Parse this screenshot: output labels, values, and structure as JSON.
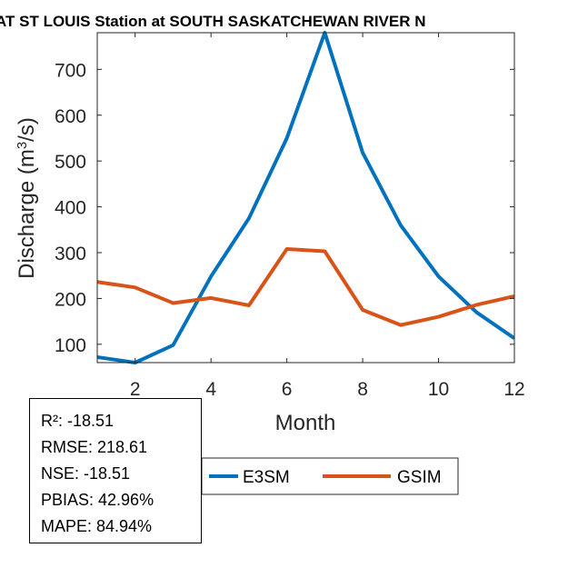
{
  "chart_data": {
    "type": "line",
    "title": "AT ST LOUIS  Station at  SOUTH SASKATCHEWAN RIVER  N",
    "xlabel": "Month",
    "ylabel_main": "Discharge (m",
    "ylabel_sup": "3",
    "ylabel_end": "/s)",
    "xlim": [
      1,
      12
    ],
    "ylim": [
      60,
      780
    ],
    "xticks": [
      2,
      4,
      6,
      8,
      10,
      12
    ],
    "yticks": [
      100,
      200,
      300,
      400,
      500,
      600,
      700
    ],
    "x": [
      1,
      2,
      3,
      4,
      5,
      6,
      7,
      8,
      9,
      10,
      11,
      12
    ],
    "series": [
      {
        "name": "E3SM",
        "color": "#0072BD",
        "values": [
          72,
          60,
          98,
          248,
          375,
          550,
          780,
          518,
          360,
          248,
          170,
          113
        ]
      },
      {
        "name": "GSIM",
        "color": "#D95319",
        "values": [
          236,
          224,
          190,
          201,
          185,
          308,
          303,
          175,
          142,
          160,
          186,
          205
        ]
      }
    ]
  },
  "stats": {
    "r2": "R²: -18.51",
    "rmse": "RMSE: 218.61",
    "nse": "NSE: -18.51",
    "pbias": "PBIAS: 42.96%",
    "mape": "MAPE: 84.94%"
  }
}
